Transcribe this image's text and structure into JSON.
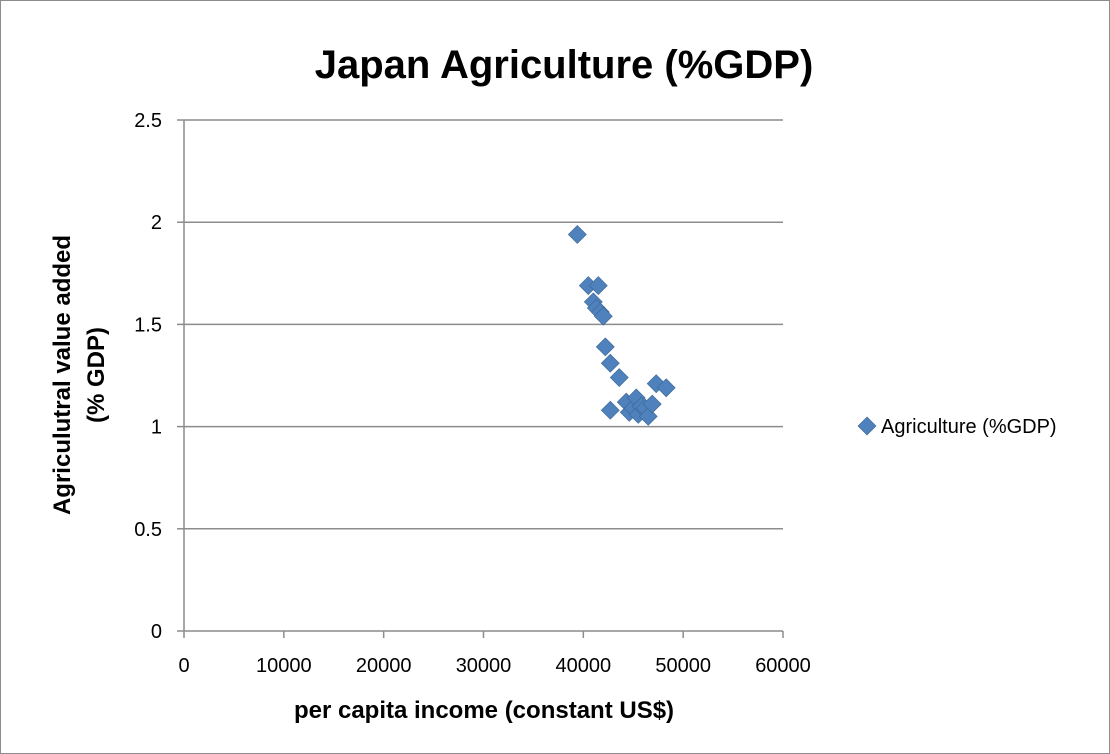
{
  "chart_data": {
    "type": "scatter",
    "title": "Japan Agriculture (%GDP)",
    "xlabel": "per capita income (constant US$)",
    "ylabel_lines": [
      "Agriculutral value added",
      "(% GDP)"
    ],
    "xlim": [
      0,
      60000
    ],
    "ylim": [
      0,
      2.5
    ],
    "x_ticks": [
      0,
      10000,
      20000,
      30000,
      40000,
      50000,
      60000
    ],
    "y_ticks": [
      0,
      0.5,
      1,
      1.5,
      2,
      2.5
    ],
    "y_tick_labels": [
      "0",
      "0.5",
      "1",
      "1.5",
      "2",
      "2.5"
    ],
    "grid": "horizontal",
    "legend_position": "right",
    "series": [
      {
        "name": "Agriculture (%GDP)",
        "color": "#4f81bd",
        "points": [
          [
            39400,
            1.94
          ],
          [
            40500,
            1.69
          ],
          [
            41500,
            1.69
          ],
          [
            41000,
            1.61
          ],
          [
            41300,
            1.58
          ],
          [
            41700,
            1.56
          ],
          [
            42000,
            1.54
          ],
          [
            42200,
            1.39
          ],
          [
            42700,
            1.31
          ],
          [
            43600,
            1.24
          ],
          [
            42700,
            1.08
          ],
          [
            44300,
            1.12
          ],
          [
            44600,
            1.07
          ],
          [
            45000,
            1.09
          ],
          [
            45300,
            1.14
          ],
          [
            45500,
            1.06
          ],
          [
            45800,
            1.1
          ],
          [
            46200,
            1.09
          ],
          [
            46500,
            1.05
          ],
          [
            46900,
            1.11
          ],
          [
            47300,
            1.21
          ],
          [
            48300,
            1.19
          ]
        ]
      }
    ]
  }
}
